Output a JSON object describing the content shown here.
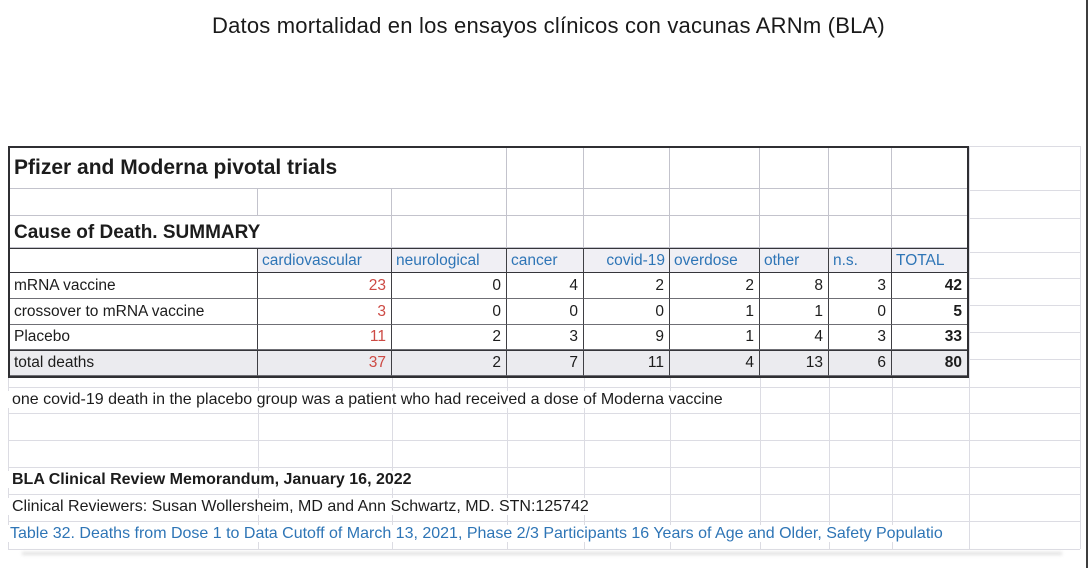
{
  "title": "Datos mortalidad en los ensayos clínicos con vacunas ARNm (BLA)",
  "table": {
    "title": "Pfizer and Moderna pivotal trials",
    "subtitle": "Cause of Death. SUMMARY",
    "columns": [
      "cardiovascular",
      "neurological",
      "cancer",
      "covid-19",
      "overdose",
      "other",
      "n.s.",
      "TOTAL"
    ],
    "rows": [
      {
        "label": "mRNA vaccine",
        "values": [
          23,
          0,
          4,
          2,
          2,
          8,
          3,
          42
        ]
      },
      {
        "label": "crossover to mRNA vaccine",
        "values": [
          3,
          0,
          0,
          0,
          1,
          1,
          0,
          5
        ]
      },
      {
        "label": "Placebo",
        "values": [
          11,
          2,
          3,
          9,
          1,
          4,
          3,
          33
        ]
      },
      {
        "label": "total deaths",
        "values": [
          37,
          2,
          7,
          11,
          4,
          13,
          6,
          80
        ]
      }
    ],
    "note": "one covid-19 death in the placebo group was a patient who had received a dose of Moderna vaccine"
  },
  "footer": {
    "memorandum": "BLA Clinical Review Memorandum, January 16, 2022",
    "reviewers": "Clinical Reviewers: Susan Wollersheim, MD and Ann Schwartz, MD. STN:125742",
    "caption": "Table 32. Deaths from Dose 1 to Data Cutoff of March 13, 2021, Phase 2/3 Participants 16 Years of Age and Older, Safety Populatio"
  },
  "colors": {
    "header_text_blue": "#2e75b6",
    "caption_blue": "#2e75b6",
    "highlight_red": "#cd4a44",
    "header_fill": "#f0eff4",
    "total_row_fill": "#ebebef",
    "gridline_faint": "#dcdce3",
    "table_border": "#2f2f33"
  }
}
